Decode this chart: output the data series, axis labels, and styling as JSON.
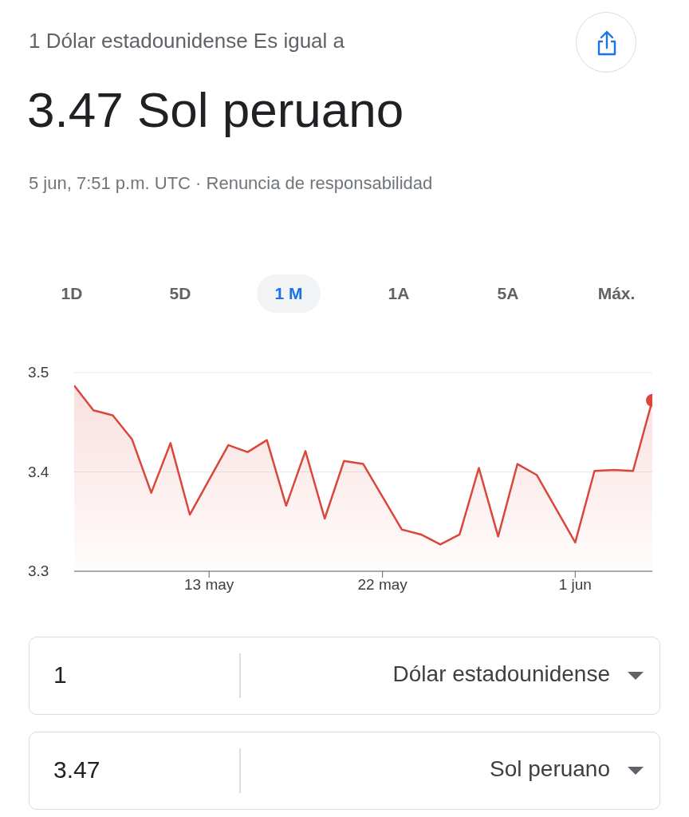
{
  "chart_data": {
    "type": "area",
    "subtitle": "1 Dólar estadounidense Es igual a",
    "title": "3.47 Sol peruano",
    "annotations": [
      "5 jun, 7:51 p.m. UTC · Renuncia de responsabilidad",
      "1D",
      "5D",
      "1 M",
      "1A",
      "5A",
      "Máx.",
      "1",
      "Dólar estadounidense",
      "3.47",
      "Sol peruano"
    ],
    "x": [
      "--05-06",
      "--05-07",
      "--05-08",
      "--05-09",
      "--05-10",
      "--05-11",
      "--05-12",
      "--05-14",
      "--05-15",
      "--05-16",
      "--05-17",
      "--05-18",
      "--05-19",
      "--05-20",
      "--05-21",
      "--05-23",
      "--05-24",
      "--05-25",
      "--05-26",
      "--05-27",
      "--05-28",
      "--05-29",
      "--05-30",
      "--06-01",
      "--06-02",
      "--06-03",
      "--06-04",
      "--06-05"
    ],
    "series": [
      {
        "color": "#d9473b",
        "values": [
          3.487,
          3.462,
          3.457,
          3.433,
          3.379,
          3.429,
          3.357,
          3.427,
          3.42,
          3.432,
          3.366,
          3.421,
          3.353,
          3.411,
          3.408,
          3.342,
          3.337,
          3.327,
          3.337,
          3.404,
          3.335,
          3.408,
          3.397,
          3.329,
          3.401,
          3.402,
          3.401,
          3.472
        ]
      },
      {
        "type": "scatter",
        "color": "#d9473b",
        "x": [
          "--06-05"
        ],
        "values": [
          3.472
        ]
      }
    ],
    "xlim": [
      "--05-06",
      "--06-05"
    ],
    "xticks": [
      {
        "value": "--05-13",
        "label": "13 may"
      },
      {
        "value": "--05-22",
        "label": "22 may"
      },
      {
        "value": "--06-01",
        "label": "1 jun"
      }
    ],
    "ylim": [
      3.3,
      3.5
    ],
    "yticks": [
      3.3,
      3.4,
      3.5
    ],
    "grid": "y"
  }
}
